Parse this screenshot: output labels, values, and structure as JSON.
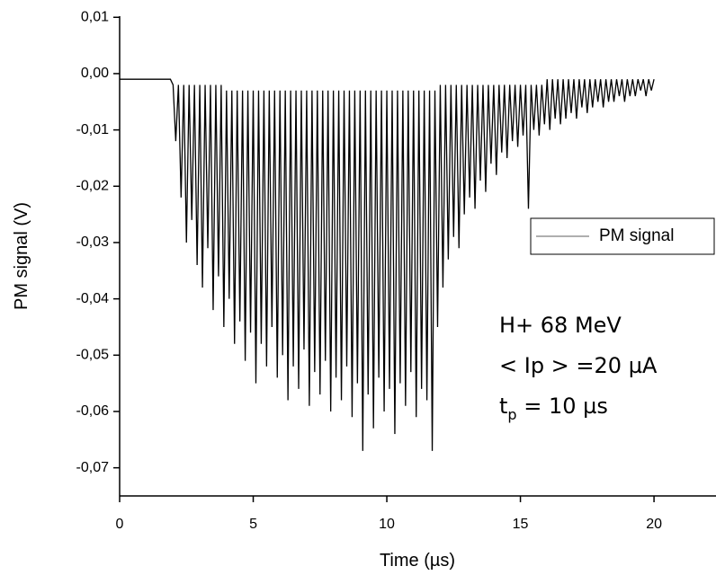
{
  "chart_data": {
    "type": "line",
    "xlabel": "Time (µs)",
    "ylabel": "PM signal (V)",
    "xlim": [
      0,
      22.32
    ],
    "ylim": [
      -0.075,
      0.0102
    ],
    "xticks": [
      0,
      5,
      10,
      15,
      20
    ],
    "yticks": [
      {
        "value": 0.01,
        "label": "0,01"
      },
      {
        "value": 0,
        "label": "0,00"
      },
      {
        "value": -0.01,
        "label": "-0,01"
      },
      {
        "value": -0.02,
        "label": "-0,02"
      },
      {
        "value": -0.03,
        "label": "-0,03"
      },
      {
        "value": -0.04,
        "label": "-0,04"
      },
      {
        "value": -0.05,
        "label": "-0,05"
      },
      {
        "value": -0.06,
        "label": "-0,06"
      },
      {
        "value": -0.07,
        "label": "-0,07"
      }
    ],
    "annotations": [
      "H+ 68 MeV",
      "< Ip > =20 µA",
      {
        "text": "t",
        "sub": "p",
        "rest": " = 10 µs"
      }
    ],
    "series": [
      {
        "name": "PM signal",
        "color": "#000000",
        "x": [
          0,
          0.5,
          1,
          1.5,
          1.9,
          2,
          2.1,
          2.2,
          2.3,
          2.4,
          2.5,
          2.6,
          2.7,
          2.8,
          2.9,
          3,
          3.1,
          3.2,
          3.3,
          3.4,
          3.5,
          3.6,
          3.7,
          3.8,
          3.9,
          4,
          4.1,
          4.2,
          4.3,
          4.4,
          4.5,
          4.6,
          4.7,
          4.8,
          4.9,
          5,
          5.1,
          5.2,
          5.3,
          5.4,
          5.5,
          5.6,
          5.7,
          5.8,
          5.9,
          6,
          6.1,
          6.2,
          6.3,
          6.4,
          6.5,
          6.6,
          6.7,
          6.8,
          6.9,
          7,
          7.1,
          7.2,
          7.3,
          7.4,
          7.5,
          7.6,
          7.7,
          7.8,
          7.9,
          8,
          8.1,
          8.2,
          8.3,
          8.4,
          8.5,
          8.6,
          8.7,
          8.8,
          8.9,
          9,
          9.1,
          9.2,
          9.3,
          9.4,
          9.5,
          9.6,
          9.7,
          9.8,
          9.9,
          10,
          10.1,
          10.2,
          10.3,
          10.4,
          10.5,
          10.6,
          10.7,
          10.8,
          10.9,
          11,
          11.1,
          11.2,
          11.3,
          11.4,
          11.5,
          11.6,
          11.7,
          11.8,
          11.9,
          12,
          12.1,
          12.2,
          12.3,
          12.4,
          12.5,
          12.6,
          12.7,
          12.8,
          12.9,
          13,
          13.1,
          13.2,
          13.3,
          13.4,
          13.5,
          13.6,
          13.7,
          13.8,
          13.9,
          14,
          14.1,
          14.2,
          14.3,
          14.4,
          14.5,
          14.6,
          14.7,
          14.8,
          14.9,
          15,
          15.1,
          15.2,
          15.3,
          15.4,
          15.5,
          15.6,
          15.7,
          15.8,
          15.9,
          16,
          16.1,
          16.2,
          16.3,
          16.4,
          16.5,
          16.6,
          16.7,
          16.8,
          16.9,
          17,
          17.1,
          17.2,
          17.3,
          17.4,
          17.5,
          17.6,
          17.7,
          17.8,
          17.9,
          18,
          18.1,
          18.2,
          18.3,
          18.4,
          18.5,
          18.6,
          18.7,
          18.8,
          18.9,
          19,
          19.1,
          19.2,
          19.3,
          19.4,
          19.5,
          19.6,
          19.7,
          19.8,
          19.9,
          20
        ],
        "values": [
          -0.001,
          -0.001,
          -0.001,
          -0.001,
          -0.001,
          -0.002,
          -0.012,
          -0.002,
          -0.022,
          -0.002,
          -0.03,
          -0.002,
          -0.026,
          -0.002,
          -0.034,
          -0.002,
          -0.038,
          -0.002,
          -0.031,
          -0.002,
          -0.042,
          -0.002,
          -0.036,
          -0.002,
          -0.045,
          -0.003,
          -0.04,
          -0.003,
          -0.048,
          -0.003,
          -0.044,
          -0.003,
          -0.051,
          -0.003,
          -0.046,
          -0.003,
          -0.055,
          -0.003,
          -0.048,
          -0.003,
          -0.052,
          -0.003,
          -0.045,
          -0.003,
          -0.054,
          -0.003,
          -0.05,
          -0.003,
          -0.058,
          -0.003,
          -0.052,
          -0.003,
          -0.056,
          -0.003,
          -0.049,
          -0.003,
          -0.059,
          -0.003,
          -0.053,
          -0.003,
          -0.057,
          -0.003,
          -0.051,
          -0.003,
          -0.06,
          -0.003,
          -0.054,
          -0.003,
          -0.058,
          -0.003,
          -0.052,
          -0.003,
          -0.061,
          -0.003,
          -0.055,
          -0.003,
          -0.067,
          -0.003,
          -0.057,
          -0.003,
          -0.063,
          -0.003,
          -0.054,
          -0.003,
          -0.06,
          -0.003,
          -0.056,
          -0.003,
          -0.064,
          -0.003,
          -0.055,
          -0.003,
          -0.059,
          -0.003,
          -0.053,
          -0.003,
          -0.061,
          -0.003,
          -0.056,
          -0.003,
          -0.058,
          -0.003,
          -0.067,
          -0.003,
          -0.045,
          -0.002,
          -0.038,
          -0.002,
          -0.033,
          -0.002,
          -0.029,
          -0.002,
          -0.031,
          -0.002,
          -0.025,
          -0.002,
          -0.022,
          -0.002,
          -0.024,
          -0.002,
          -0.019,
          -0.002,
          -0.021,
          -0.002,
          -0.016,
          -0.002,
          -0.018,
          -0.002,
          -0.014,
          -0.002,
          -0.015,
          -0.002,
          -0.012,
          -0.002,
          -0.013,
          -0.002,
          -0.011,
          -0.002,
          -0.024,
          -0.002,
          -0.01,
          -0.002,
          -0.011,
          -0.002,
          -0.009,
          -0.001,
          -0.01,
          -0.001,
          -0.008,
          -0.001,
          -0.009,
          -0.001,
          -0.008,
          -0.001,
          -0.007,
          -0.001,
          -0.008,
          -0.001,
          -0.006,
          -0.001,
          -0.007,
          -0.001,
          -0.006,
          -0.001,
          -0.005,
          -0.001,
          -0.006,
          -0.001,
          -0.005,
          -0.001,
          -0.005,
          -0.001,
          -0.004,
          -0.001,
          -0.005,
          -0.001,
          -0.004,
          -0.001,
          -0.004,
          -0.001,
          -0.003,
          -0.001,
          -0.004,
          -0.001,
          -0.003,
          -0.001
        ]
      }
    ]
  }
}
